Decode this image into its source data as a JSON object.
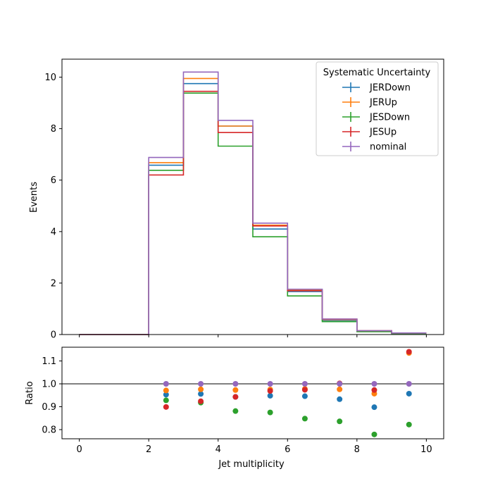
{
  "chart_data": {
    "type": "step",
    "bin_edges": [
      0,
      1,
      2,
      3,
      4,
      5,
      6,
      7,
      8,
      9,
      10
    ],
    "bin_centers": [
      0.5,
      1.5,
      2.5,
      3.5,
      4.5,
      5.5,
      6.5,
      7.5,
      8.5,
      9.5
    ],
    "xlabel": "Jet multiplicity",
    "xlim": [
      -0.5,
      10.5
    ],
    "xticks": [
      "0",
      "2",
      "4",
      "6",
      "8",
      "10"
    ],
    "top": {
      "ylabel": "Events",
      "ylim": [
        0,
        10.7
      ],
      "yticks": [
        "0",
        "2",
        "4",
        "6",
        "8",
        "10"
      ]
    },
    "bottom": {
      "ylabel": "Ratio",
      "ylim": [
        0.76,
        1.16
      ],
      "yticks": [
        "0.8",
        "0.9",
        "1.0",
        "1.1"
      ],
      "reference_line": 1.0
    },
    "legend": {
      "title": "Systematic Uncertainty",
      "placement": "top-right"
    },
    "series": [
      {
        "name": "JERDown",
        "color": "#1f77b4",
        "values": [
          0,
          0,
          6.58,
          9.75,
          8.1,
          4.1,
          1.67,
          0.55,
          0.13,
          0.05
        ],
        "ratio": [
          null,
          null,
          0.953,
          0.956,
          0.943,
          0.948,
          0.946,
          0.933,
          0.898,
          0.957
        ]
      },
      {
        "name": "JERUp",
        "color": "#ff7f0e",
        "values": [
          0,
          0,
          6.68,
          9.95,
          8.1,
          4.25,
          1.72,
          0.58,
          0.14,
          0.06
        ],
        "ratio": [
          null,
          null,
          0.971,
          0.976,
          0.973,
          0.975,
          0.978,
          0.976,
          0.957,
          1.135
        ]
      },
      {
        "name": "JESDown",
        "color": "#2ca02c",
        "values": [
          0,
          0,
          6.38,
          9.38,
          7.32,
          3.8,
          1.5,
          0.5,
          0.11,
          0.04
        ],
        "ratio": [
          null,
          null,
          0.928,
          0.918,
          0.881,
          0.875,
          0.848,
          0.836,
          0.779,
          0.822
        ]
      },
      {
        "name": "JESUp",
        "color": "#d62728",
        "values": [
          0,
          0,
          6.2,
          9.45,
          7.85,
          4.22,
          1.7,
          0.6,
          0.15,
          0.06
        ],
        "ratio": [
          null,
          null,
          0.899,
          0.924,
          0.943,
          0.969,
          0.974,
          1.002,
          0.973,
          1.14
        ]
      },
      {
        "name": "nominal",
        "color": "#9467bd",
        "values": [
          0,
          0,
          6.88,
          10.2,
          8.32,
          4.33,
          1.76,
          0.6,
          0.15,
          0.06
        ],
        "ratio": [
          null,
          null,
          1.0,
          1.0,
          1.0,
          1.0,
          1.0,
          1.0,
          1.0,
          1.0
        ]
      }
    ]
  }
}
